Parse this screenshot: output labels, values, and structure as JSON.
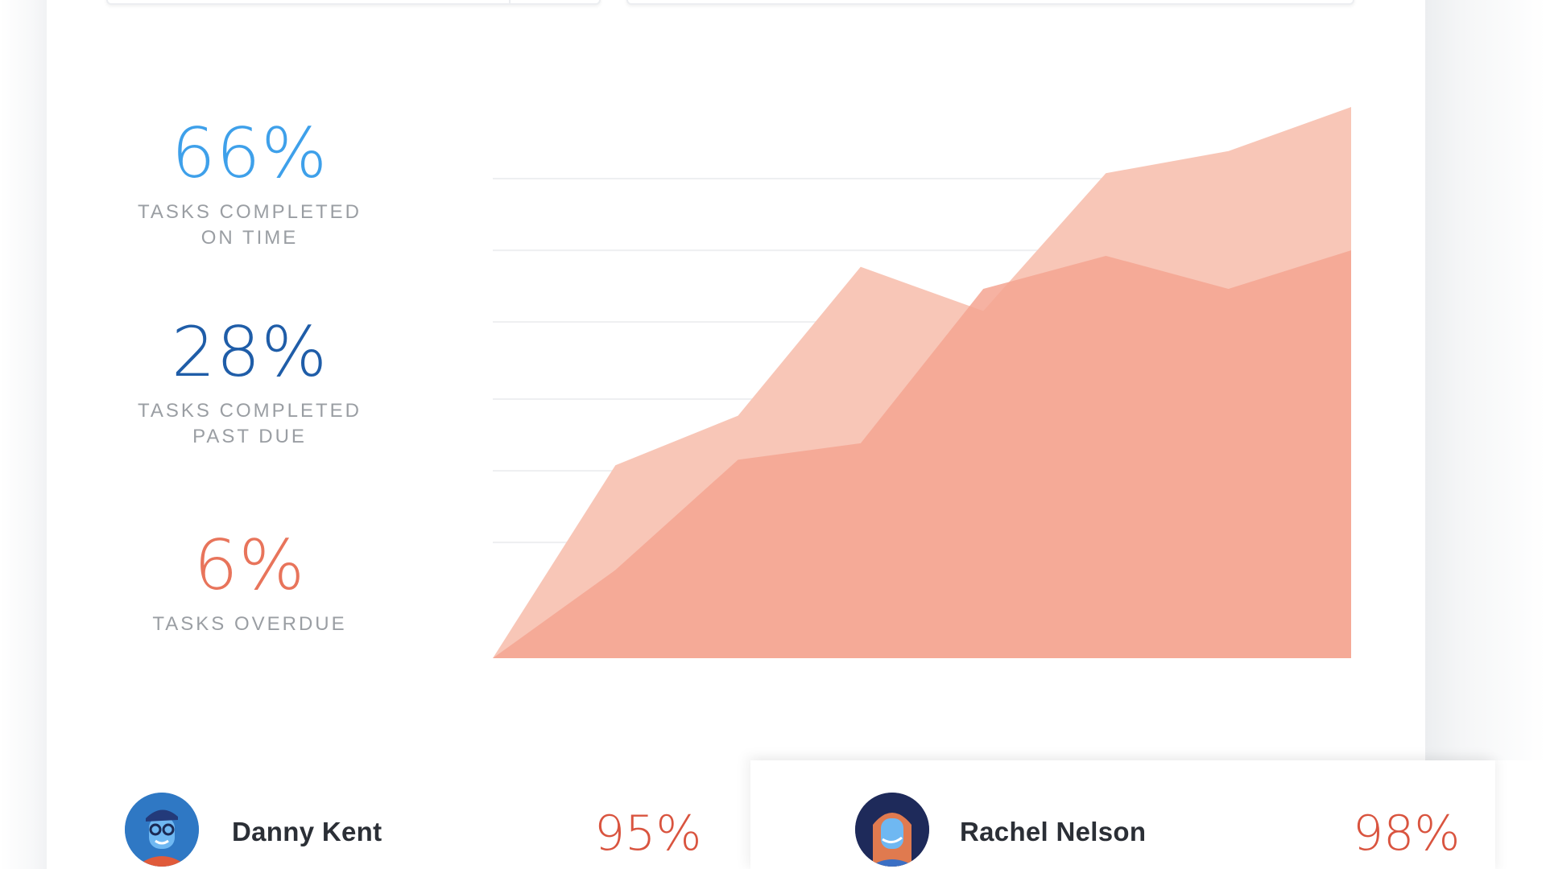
{
  "stats": [
    {
      "value": "66%",
      "label_line1": "TASKS COMPLETED",
      "label_line2": "ON TIME",
      "color": "#3ea0ea"
    },
    {
      "value": "28%",
      "label_line1": "TASKS COMPLETED",
      "label_line2": "PAST DUE",
      "color": "#1f5da8"
    },
    {
      "value": "6%",
      "label_line1": "TASKS OVERDUE",
      "label_line2": "",
      "color": "#e8745b"
    }
  ],
  "chart_data": {
    "type": "area",
    "grid": true,
    "legend": "none",
    "x": [
      0,
      1,
      2,
      3,
      4,
      5,
      6,
      7
    ],
    "ylim": [
      0,
      100
    ],
    "series": [
      {
        "values": [
          0,
          35,
          44,
          71,
          63,
          88,
          92,
          100
        ],
        "color": "#f8c3b3"
      },
      {
        "values": [
          0,
          16,
          36,
          39,
          67,
          73,
          67,
          74
        ],
        "color": "#f5a592"
      }
    ]
  },
  "users": [
    {
      "name": "Danny Kent",
      "score": "95%",
      "avatar": "avatar-danny-icon"
    },
    {
      "name": "Rachel Nelson",
      "score": "98%",
      "avatar": "avatar-rachel-icon"
    }
  ]
}
